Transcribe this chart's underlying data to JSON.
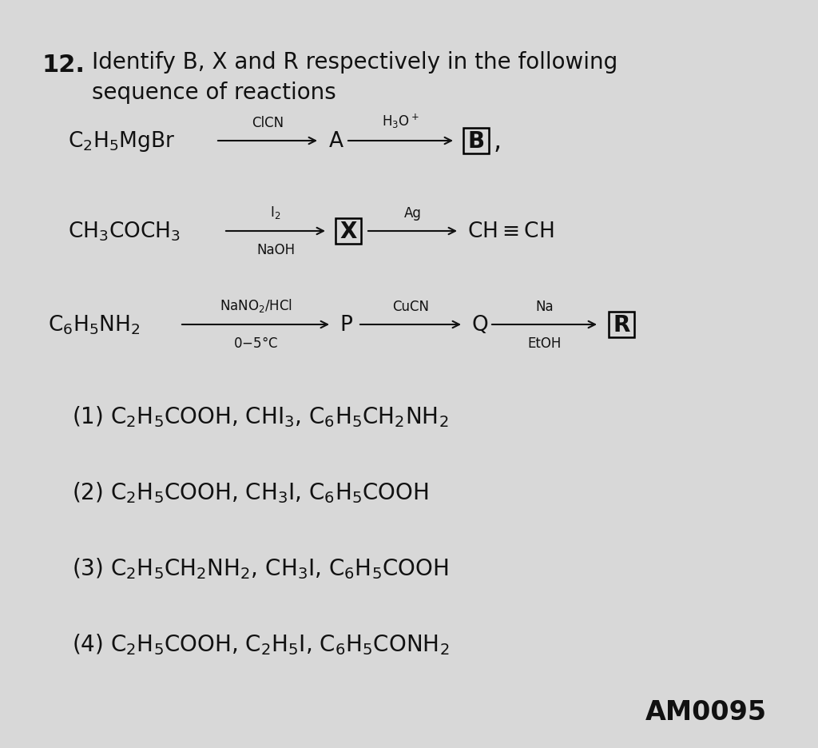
{
  "background_color": "#d8d8d8",
  "text_color": "#111111",
  "font_size_title": 20,
  "font_size_number": 22,
  "font_size_reaction": 19,
  "font_size_reagent": 12,
  "font_size_options": 20,
  "font_size_watermark": 24,
  "title_line1": "Identify B, X and R respectively in the following",
  "title_line2": "sequence of reactions",
  "watermark": "AM0095",
  "arrow_color": "#111111"
}
